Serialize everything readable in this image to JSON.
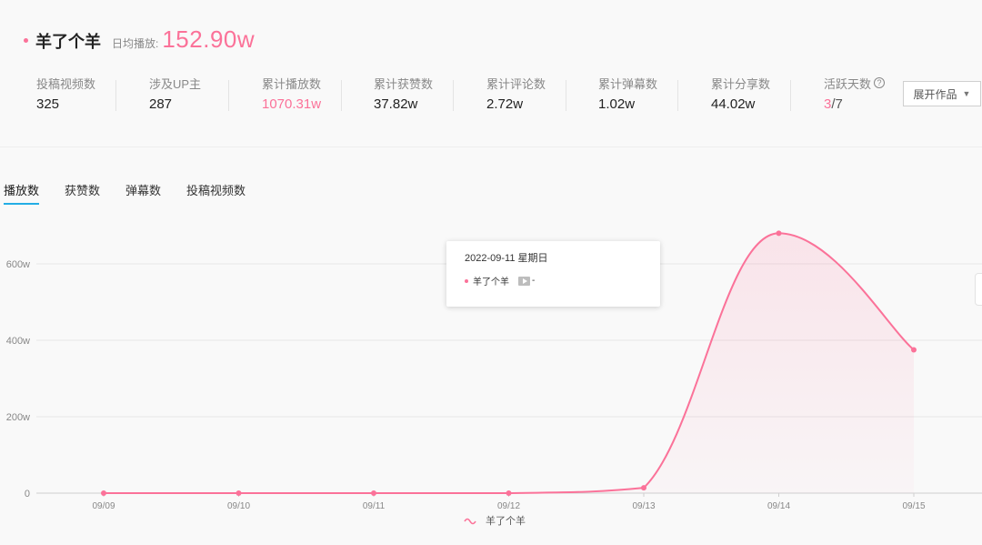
{
  "header": {
    "name": "羊了个羊",
    "avg_label": "日均播放:",
    "avg_value": "152.90w"
  },
  "stats": [
    {
      "label": "投稿视频数",
      "value": "325"
    },
    {
      "label": "涉及UP主",
      "value": "287"
    },
    {
      "label": "累计播放数",
      "value": "1070.31w"
    },
    {
      "label": "累计获赞数",
      "value": "37.82w"
    },
    {
      "label": "累计评论数",
      "value": "2.72w"
    },
    {
      "label": "累计弹幕数",
      "value": "1.02w"
    },
    {
      "label": "累计分享数",
      "value": "44.02w"
    },
    {
      "label": "活跃天数",
      "value_active": "3",
      "value_total": "/7",
      "help_icon": "?"
    }
  ],
  "expand_button": {
    "label": "展开作品",
    "icon": "caret-down-icon"
  },
  "tabs": [
    {
      "label": "播放数",
      "active": true
    },
    {
      "label": "获赞数",
      "active": false
    },
    {
      "label": "弹幕数",
      "active": false
    },
    {
      "label": "投稿视频数",
      "active": false
    }
  ],
  "tooltip": {
    "date": "2022-09-11 星期日",
    "series": "羊了个羊",
    "icon": "play-icon",
    "value": "-"
  },
  "chart_data": {
    "type": "area",
    "x": [
      "09/09",
      "09/10",
      "09/11",
      "09/12",
      "09/13",
      "09/14",
      "09/15"
    ],
    "series": [
      {
        "name": "羊了个羊",
        "values": [
          0,
          0,
          0,
          0,
          14,
          680,
          375
        ],
        "color": "#fb7299"
      }
    ],
    "yticks": [
      "0",
      "200w",
      "400w",
      "600w"
    ],
    "ytick_values": [
      0,
      200,
      400,
      600
    ],
    "ylim": [
      0,
      700
    ],
    "grid": true,
    "legend": "bottom-center"
  }
}
